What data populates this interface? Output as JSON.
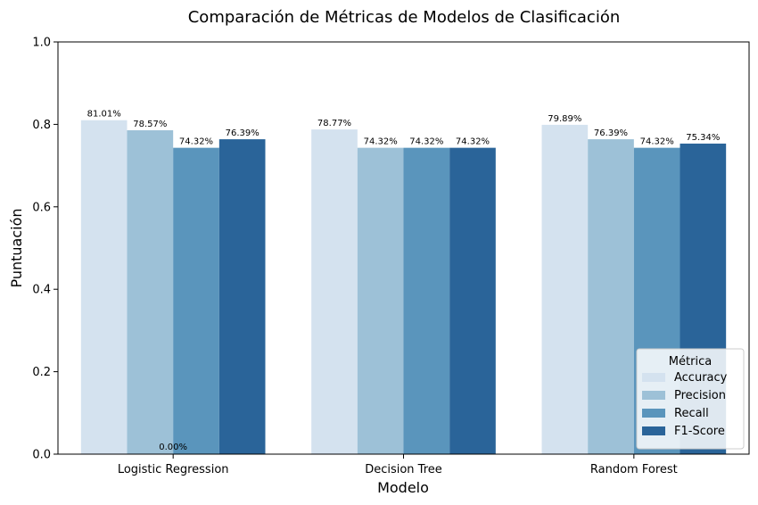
{
  "chart_data": {
    "type": "bar",
    "title": "Comparación de Métricas de Modelos de Clasificación",
    "xlabel": "Modelo",
    "ylabel": "Puntuación",
    "ylim": [
      0,
      1.0
    ],
    "yticks": [
      "0.0",
      "0.2",
      "0.4",
      "0.6",
      "0.8",
      "1.0"
    ],
    "ytick_values": [
      0,
      0.2,
      0.4,
      0.6,
      0.8,
      1.0
    ],
    "categories": [
      "Logistic Regression",
      "Decision Tree",
      "Random Forest"
    ],
    "series": [
      {
        "name": "Accuracy",
        "values": [
          0.8101,
          0.7877,
          0.7989
        ],
        "labels": [
          "81.01%",
          "78.77%",
          "79.89%"
        ],
        "color": "#d4e2ef"
      },
      {
        "name": "Precision",
        "values": [
          0.7857,
          0.7432,
          0.7639
        ],
        "labels": [
          "78.57%",
          "74.32%",
          "76.39%"
        ],
        "color": "#9dc1d7"
      },
      {
        "name": "Recall",
        "values": [
          0.7432,
          0.7432,
          0.7432
        ],
        "labels": [
          "74.32%",
          "74.32%",
          "74.32%"
        ],
        "color": "#5a95bc"
      },
      {
        "name": "F1-Score",
        "values": [
          0.7639,
          0.7432,
          0.7534
        ],
        "labels": [
          "76.39%",
          "74.32%",
          "75.34%"
        ],
        "color": "#2a6499"
      }
    ],
    "extra_annotation": {
      "text": "0.00%",
      "category": "Logistic Regression",
      "value": 0
    },
    "legend": {
      "title": "Métrica",
      "placement": "lower-right"
    },
    "grid": false
  }
}
